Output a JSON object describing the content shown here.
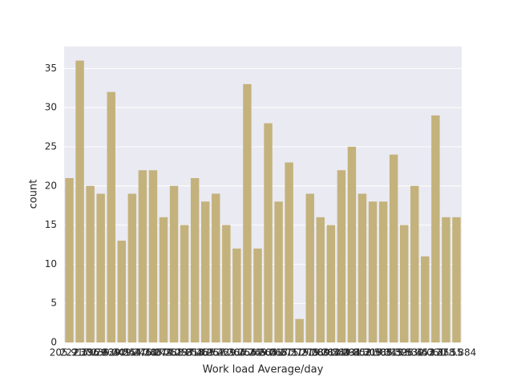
{
  "chart_data": {
    "type": "bar",
    "x_label": "Work load Average/day",
    "y_label": "count",
    "categories": [
      "205.917",
      "222.196",
      "230.29",
      "236.629",
      "239.409",
      "239.554",
      "241.476",
      "244.387",
      "246.074",
      "246.288",
      "249.797",
      "251.818",
      "253.465",
      "253.957",
      "257.429",
      "261.306",
      "261.756",
      "264.249",
      "264.604",
      "265.017",
      "265.615",
      "268.519",
      "271.219",
      "275.089",
      "275.312",
      "280.549",
      "284.031",
      "284.853",
      "294.217",
      "302.585",
      "306.345",
      "308.593",
      "313.532",
      "326.452",
      "330.061",
      "343.253",
      "377.55",
      "378.884"
    ],
    "values": [
      21,
      36,
      20,
      19,
      32,
      13,
      19,
      22,
      22,
      16,
      20,
      15,
      21,
      18,
      19,
      15,
      12,
      33,
      12,
      28,
      18,
      23,
      3,
      19,
      16,
      15,
      22,
      25,
      19,
      18,
      18,
      24,
      15,
      20,
      11,
      29,
      16,
      16
    ],
    "color": "#c4b27c",
    "background": "#eaeaf2",
    "ylim": [
      0,
      37.8
    ],
    "yticks": [
      0,
      5,
      10,
      15,
      20,
      25,
      30,
      35
    ],
    "grid": true
  }
}
